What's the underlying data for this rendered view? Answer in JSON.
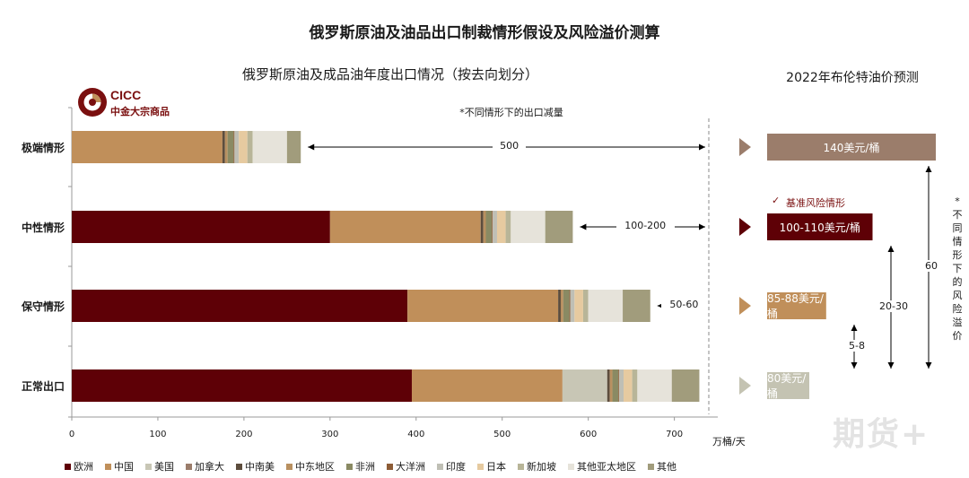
{
  "title": "俄罗斯原油及油品出口制裁情形假设及风险溢价测算",
  "brand": {
    "name": "CICC",
    "subtitle": "中金大宗商品"
  },
  "watermark": "期货+",
  "chart_data": [
    {
      "type": "bar",
      "orientation": "horizontal",
      "stacked": true,
      "title": "俄罗斯原油及成品油年度出口情况（按去向划分）",
      "unit": "万桶/天",
      "xlim": [
        0,
        740
      ],
      "xticks": [
        "0",
        "100",
        "200",
        "300",
        "400",
        "500",
        "600",
        "700"
      ],
      "note": "*不同情形下的出口减量",
      "categories": [
        "极端情形",
        "中性情形",
        "保守情形",
        "正常出口"
      ],
      "series": [
        {
          "name": "欧洲",
          "color": "#5e0006",
          "values": [
            0,
            300,
            390,
            395
          ]
        },
        {
          "name": "中国",
          "color": "#c08f5a",
          "values": [
            175,
            175,
            175,
            175
          ]
        },
        {
          "name": "美国",
          "color": "#c8c6b5",
          "values": [
            0,
            0,
            0,
            52
          ]
        },
        {
          "name": "加拿大",
          "color": "#9b7d6b",
          "values": [
            0,
            0,
            0,
            0
          ]
        },
        {
          "name": "中南美",
          "color": "#5d4d3d",
          "values": [
            3,
            3,
            3,
            3
          ]
        },
        {
          "name": "中东地区",
          "color": "#b99060",
          "values": [
            3,
            3,
            3,
            3
          ]
        },
        {
          "name": "非洲",
          "color": "#8a8a63",
          "values": [
            7,
            7,
            7,
            7
          ]
        },
        {
          "name": "大洋洲",
          "color": "#8d5c36",
          "values": [
            1,
            1,
            1,
            1
          ]
        },
        {
          "name": "印度",
          "color": "#bfbfb5",
          "values": [
            5,
            5,
            5,
            5
          ]
        },
        {
          "name": "日本",
          "color": "#e6caa0",
          "values": [
            10,
            10,
            10,
            10
          ]
        },
        {
          "name": "新加坡",
          "color": "#b8b598",
          "values": [
            6,
            6,
            6,
            6
          ]
        },
        {
          "name": "其他亚太地区",
          "color": "#e6e3da",
          "values": [
            40,
            40,
            40,
            40
          ]
        },
        {
          "name": "其他",
          "color": "#a19c7c",
          "values": [
            16,
            32,
            32,
            32
          ]
        }
      ],
      "annotations": [
        {
          "category": "极端情形",
          "text": "500"
        },
        {
          "category": "中性情形",
          "text": "100-200"
        },
        {
          "category": "保守情形",
          "text": "50-60"
        }
      ]
    },
    {
      "type": "bar",
      "orientation": "horizontal",
      "title": "2022年布伦特油价预测",
      "categories": [
        "极端情形",
        "中性情形",
        "保守情形",
        "正常出口"
      ],
      "labels": [
        "140美元/桶",
        "100-110美元/桶",
        "85-88美元/桶",
        "80美元/桶"
      ],
      "values_low": [
        140,
        100,
        85,
        80
      ],
      "values_high": [
        140,
        110,
        88,
        80
      ],
      "colors": [
        "#9b7d6b",
        "#5e0006",
        "#c08f5a",
        "#c4c3b2"
      ],
      "base_case_label": "基准风险情形",
      "base_case_category": "中性情形",
      "premium_axis_label": "*不同情形下的风险溢价",
      "premiums": [
        {
          "from": "正常出口",
          "to": "保守情形",
          "text": "5-8"
        },
        {
          "from": "正常出口",
          "to": "中性情形",
          "text": "20-30"
        },
        {
          "from": "正常出口",
          "to": "极端情形",
          "text": "60"
        }
      ]
    }
  ]
}
